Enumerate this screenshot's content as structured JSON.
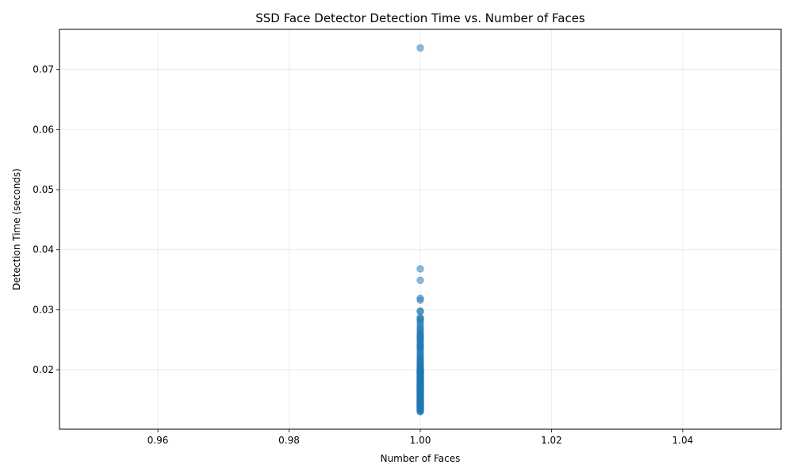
{
  "chart_data": {
    "type": "scatter",
    "title": "SSD Face Detector Detection Time vs. Number of Faces",
    "xlabel": "Number of Faces",
    "ylabel": "Detection Time (seconds)",
    "xlim": [
      0.945,
      1.055
    ],
    "ylim": [
      0.0101,
      0.0767
    ],
    "xticks": [
      0.96,
      0.98,
      1.0,
      1.02,
      1.04
    ],
    "xtick_labels": [
      "0.96",
      "0.98",
      "1.00",
      "1.02",
      "1.04"
    ],
    "yticks": [
      0.02,
      0.03,
      0.04,
      0.05,
      0.06,
      0.07
    ],
    "ytick_labels": [
      "0.02",
      "0.03",
      "0.04",
      "0.05",
      "0.06",
      "0.07"
    ],
    "grid": true,
    "marker_color": "#1f77b4",
    "marker_alpha": 0.5,
    "series": [
      {
        "x": [
          1,
          1,
          1,
          1,
          1,
          1,
          1,
          1,
          1,
          1,
          1,
          1,
          1,
          1,
          1,
          1,
          1,
          1,
          1,
          1,
          1,
          1,
          1,
          1,
          1,
          1,
          1,
          1,
          1,
          1,
          1,
          1,
          1,
          1,
          1,
          1,
          1,
          1,
          1,
          1,
          1,
          1,
          1,
          1,
          1,
          1,
          1,
          1,
          1,
          1,
          1,
          1,
          1,
          1,
          1,
          1,
          1,
          1,
          1,
          1,
          1,
          1,
          1,
          1,
          1,
          1,
          1,
          1,
          1,
          1,
          1,
          1,
          1,
          1,
          1,
          1,
          1,
          1,
          1,
          1,
          1,
          1,
          1,
          1,
          1,
          1,
          1,
          1,
          1,
          1,
          1,
          1,
          1,
          1,
          1,
          1,
          1,
          1,
          1,
          1,
          1,
          1,
          1,
          1,
          1,
          1,
          1,
          1,
          1,
          1,
          1,
          1,
          1,
          1,
          1,
          1,
          1,
          1,
          1,
          1
        ],
        "y": [
          0.0736,
          0.0368,
          0.0349,
          0.0319,
          0.0316,
          0.0298,
          0.0297,
          0.0287,
          0.0285,
          0.0283,
          0.0279,
          0.0275,
          0.0271,
          0.0268,
          0.0265,
          0.0262,
          0.0259,
          0.0257,
          0.0255,
          0.0253,
          0.0251,
          0.0249,
          0.0246,
          0.0243,
          0.0241,
          0.0239,
          0.0237,
          0.0235,
          0.0232,
          0.0229,
          0.0226,
          0.0223,
          0.0221,
          0.0218,
          0.0216,
          0.0214,
          0.0212,
          0.021,
          0.0208,
          0.0206,
          0.0204,
          0.0202,
          0.02,
          0.0199,
          0.0198,
          0.0197,
          0.0196,
          0.0195,
          0.0194,
          0.0193,
          0.0192,
          0.0191,
          0.019,
          0.0189,
          0.0188,
          0.0187,
          0.0186,
          0.0185,
          0.0184,
          0.0183,
          0.0182,
          0.0181,
          0.018,
          0.0179,
          0.0178,
          0.0177,
          0.0176,
          0.0175,
          0.0174,
          0.0173,
          0.0172,
          0.0171,
          0.017,
          0.0169,
          0.0168,
          0.0167,
          0.0166,
          0.0165,
          0.0164,
          0.0163,
          0.0162,
          0.0161,
          0.016,
          0.0159,
          0.0158,
          0.0157,
          0.0156,
          0.0155,
          0.0154,
          0.0153,
          0.0152,
          0.0151,
          0.015,
          0.0149,
          0.0148,
          0.0147,
          0.0146,
          0.0145,
          0.0144,
          0.0143,
          0.0142,
          0.0141,
          0.014,
          0.0139,
          0.0138,
          0.0137,
          0.0136,
          0.0135,
          0.0134,
          0.0133,
          0.0132,
          0.0131,
          0.013,
          0.0141,
          0.0152,
          0.0163,
          0.0174,
          0.0185,
          0.0196,
          0.0147
        ]
      }
    ]
  }
}
